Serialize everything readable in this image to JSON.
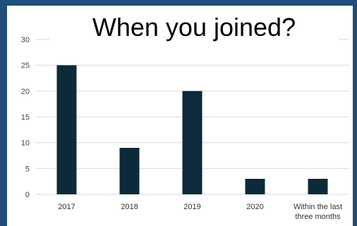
{
  "chart_data": {
    "type": "bar",
    "title": "When you joined?",
    "categories": [
      "2017",
      "2018",
      "2019",
      "2020",
      "Within the last three months"
    ],
    "category_lines": [
      [
        "2017"
      ],
      [
        "2018"
      ],
      [
        "2019"
      ],
      [
        "2020"
      ],
      [
        "Within the last",
        "three months"
      ]
    ],
    "values": [
      25,
      9,
      20,
      3,
      3
    ],
    "ylim": [
      0,
      30
    ],
    "yticks": [
      0,
      5,
      10,
      15,
      20,
      25,
      30
    ],
    "xlabel": "",
    "ylabel": "",
    "grid": true,
    "bar_color": "#0d2a3a",
    "grid_color": "#d9d9d9"
  }
}
